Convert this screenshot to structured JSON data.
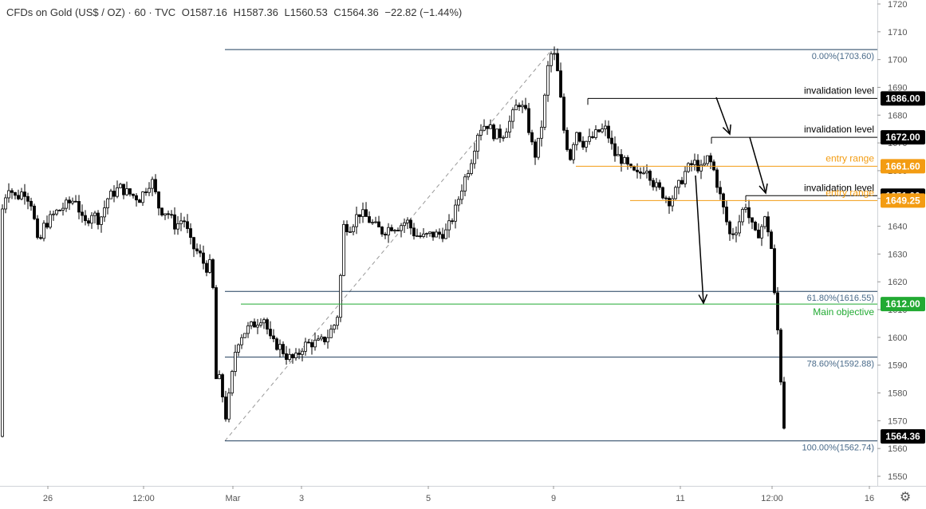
{
  "header": {
    "symbol": "CFDs on Gold (US$ / OZ) · 60 · TVC",
    "open": "O1587.16",
    "high": "H1587.36",
    "low": "L1560.53",
    "close": "C1564.36",
    "change": "−22.82 (−1.44%)"
  },
  "colors": {
    "candle": "#000000",
    "fib_line": "#1f3d5c",
    "fib_text": "#4a6b8a",
    "objective": "#22aa33",
    "entry": "#f39c12",
    "invalidation": "#000000",
    "price_tag_dark": "#000000",
    "grid_border": "#d0d3d8"
  },
  "icons": {
    "settings": "gear-icon"
  },
  "chart_data": {
    "type": "candlestick",
    "instrument": "CFDs on Gold (US$ / OZ)",
    "timeframe": "60",
    "ylim": [
      1545,
      1722
    ],
    "y_ticks": [
      1550,
      1560,
      1570,
      1580,
      1590,
      1600,
      1610,
      1620,
      1630,
      1640,
      1650,
      1660,
      1670,
      1680,
      1690,
      1700,
      1710,
      1720
    ],
    "x_ticks": [
      {
        "label": "26",
        "t": 60
      },
      {
        "label": "12:00",
        "t": 180
      },
      {
        "label": "Mar",
        "t": 292
      },
      {
        "label": "3",
        "t": 378
      },
      {
        "label": "5",
        "t": 537
      },
      {
        "label": "9",
        "t": 694
      },
      {
        "label": "11",
        "t": 853
      },
      {
        "label": "12:00",
        "t": 968
      },
      {
        "label": "16",
        "t": 1090
      }
    ],
    "x_range": [
      0,
      1100
    ],
    "price_path": [
      [
        2,
        1645
      ],
      [
        10,
        1655
      ],
      [
        20,
        1650
      ],
      [
        30,
        1653
      ],
      [
        40,
        1648
      ],
      [
        48,
        1632
      ],
      [
        55,
        1640
      ],
      [
        70,
        1645
      ],
      [
        85,
        1648
      ],
      [
        95,
        1650
      ],
      [
        105,
        1640
      ],
      [
        115,
        1645
      ],
      [
        125,
        1642
      ],
      [
        135,
        1650
      ],
      [
        150,
        1654
      ],
      [
        160,
        1652
      ],
      [
        175,
        1650
      ],
      [
        190,
        1657
      ],
      [
        200,
        1646
      ],
      [
        210,
        1645
      ],
      [
        220,
        1640
      ],
      [
        230,
        1643
      ],
      [
        240,
        1633
      ],
      [
        250,
        1630
      ],
      [
        258,
        1625
      ],
      [
        263,
        1626
      ],
      [
        268,
        1615
      ],
      [
        272,
        1575
      ],
      [
        276,
        1588
      ],
      [
        282,
        1570
      ],
      [
        288,
        1580
      ],
      [
        295,
        1595
      ],
      [
        300,
        1600
      ],
      [
        310,
        1603
      ],
      [
        320,
        1605
      ],
      [
        330,
        1608
      ],
      [
        340,
        1598
      ],
      [
        350,
        1597
      ],
      [
        360,
        1593
      ],
      [
        370,
        1592
      ],
      [
        380,
        1597
      ],
      [
        390,
        1598
      ],
      [
        400,
        1598
      ],
      [
        410,
        1600
      ],
      [
        420,
        1605
      ],
      [
        425,
        1610
      ],
      [
        430,
        1640
      ],
      [
        440,
        1640
      ],
      [
        450,
        1645
      ],
      [
        460,
        1643
      ],
      [
        470,
        1640
      ],
      [
        480,
        1638
      ],
      [
        490,
        1640
      ],
      [
        500,
        1640
      ],
      [
        510,
        1642
      ],
      [
        520,
        1637
      ],
      [
        530,
        1636
      ],
      [
        540,
        1637
      ],
      [
        550,
        1637
      ],
      [
        560,
        1638
      ],
      [
        570,
        1645
      ],
      [
        580,
        1655
      ],
      [
        590,
        1663
      ],
      [
        600,
        1675
      ],
      [
        610,
        1677
      ],
      [
        620,
        1673
      ],
      [
        630,
        1673
      ],
      [
        640,
        1678
      ],
      [
        650,
        1685
      ],
      [
        660,
        1680
      ],
      [
        666,
        1670
      ],
      [
        672,
        1665
      ],
      [
        680,
        1678
      ],
      [
        687,
        1697
      ],
      [
        692,
        1703
      ],
      [
        697,
        1700
      ],
      [
        702,
        1688
      ],
      [
        708,
        1672
      ],
      [
        715,
        1665
      ],
      [
        722,
        1675
      ],
      [
        730,
        1670
      ],
      [
        740,
        1671
      ],
      [
        750,
        1674
      ],
      [
        760,
        1675
      ],
      [
        770,
        1666
      ],
      [
        780,
        1664
      ],
      [
        790,
        1660
      ],
      [
        800,
        1658
      ],
      [
        810,
        1662
      ],
      [
        820,
        1655
      ],
      [
        830,
        1652
      ],
      [
        840,
        1649
      ],
      [
        850,
        1654
      ],
      [
        860,
        1660
      ],
      [
        870,
        1663
      ],
      [
        880,
        1660
      ],
      [
        888,
        1665
      ],
      [
        895,
        1660
      ],
      [
        902,
        1652
      ],
      [
        908,
        1645
      ],
      [
        915,
        1637
      ],
      [
        920,
        1638
      ],
      [
        925,
        1640
      ],
      [
        930,
        1645
      ],
      [
        935,
        1648
      ],
      [
        940,
        1642
      ],
      [
        948,
        1636
      ],
      [
        955,
        1640
      ],
      [
        960,
        1643
      ],
      [
        965,
        1636
      ],
      [
        968,
        1630
      ],
      [
        972,
        1610
      ],
      [
        976,
        1600
      ],
      [
        980,
        1580
      ],
      [
        984,
        1564.36
      ]
    ],
    "fib_levels": [
      {
        "label": "0.00%(1703.60)",
        "price": 1703.6
      },
      {
        "label": "61.80%(1616.55)",
        "price": 1616.55
      },
      {
        "label": "78.60%(1592.88)",
        "price": 1592.88
      },
      {
        "label": "100.00%(1562.74)",
        "price": 1562.74
      }
    ],
    "levels": [
      {
        "label": "invalidation level",
        "price": 1686.0,
        "tag": "1686.00",
        "kind": "invalidation"
      },
      {
        "label": "invalidation level",
        "price": 1672.0,
        "tag": "1672.00",
        "kind": "invalidation"
      },
      {
        "label": "entry range",
        "price": 1661.6,
        "tag": "1661.60",
        "kind": "entry"
      },
      {
        "label": "invalidation level",
        "price": 1651.0,
        "tag": "1651.00",
        "kind": "invalidation"
      },
      {
        "label": "entry range",
        "price": 1649.25,
        "tag": "1649.25",
        "kind": "entry"
      },
      {
        "label": "Main objective",
        "price": 1612.0,
        "tag": "1612.00",
        "kind": "objective"
      }
    ],
    "last_price": {
      "price": 1564.36,
      "tag": "1564.36"
    }
  }
}
